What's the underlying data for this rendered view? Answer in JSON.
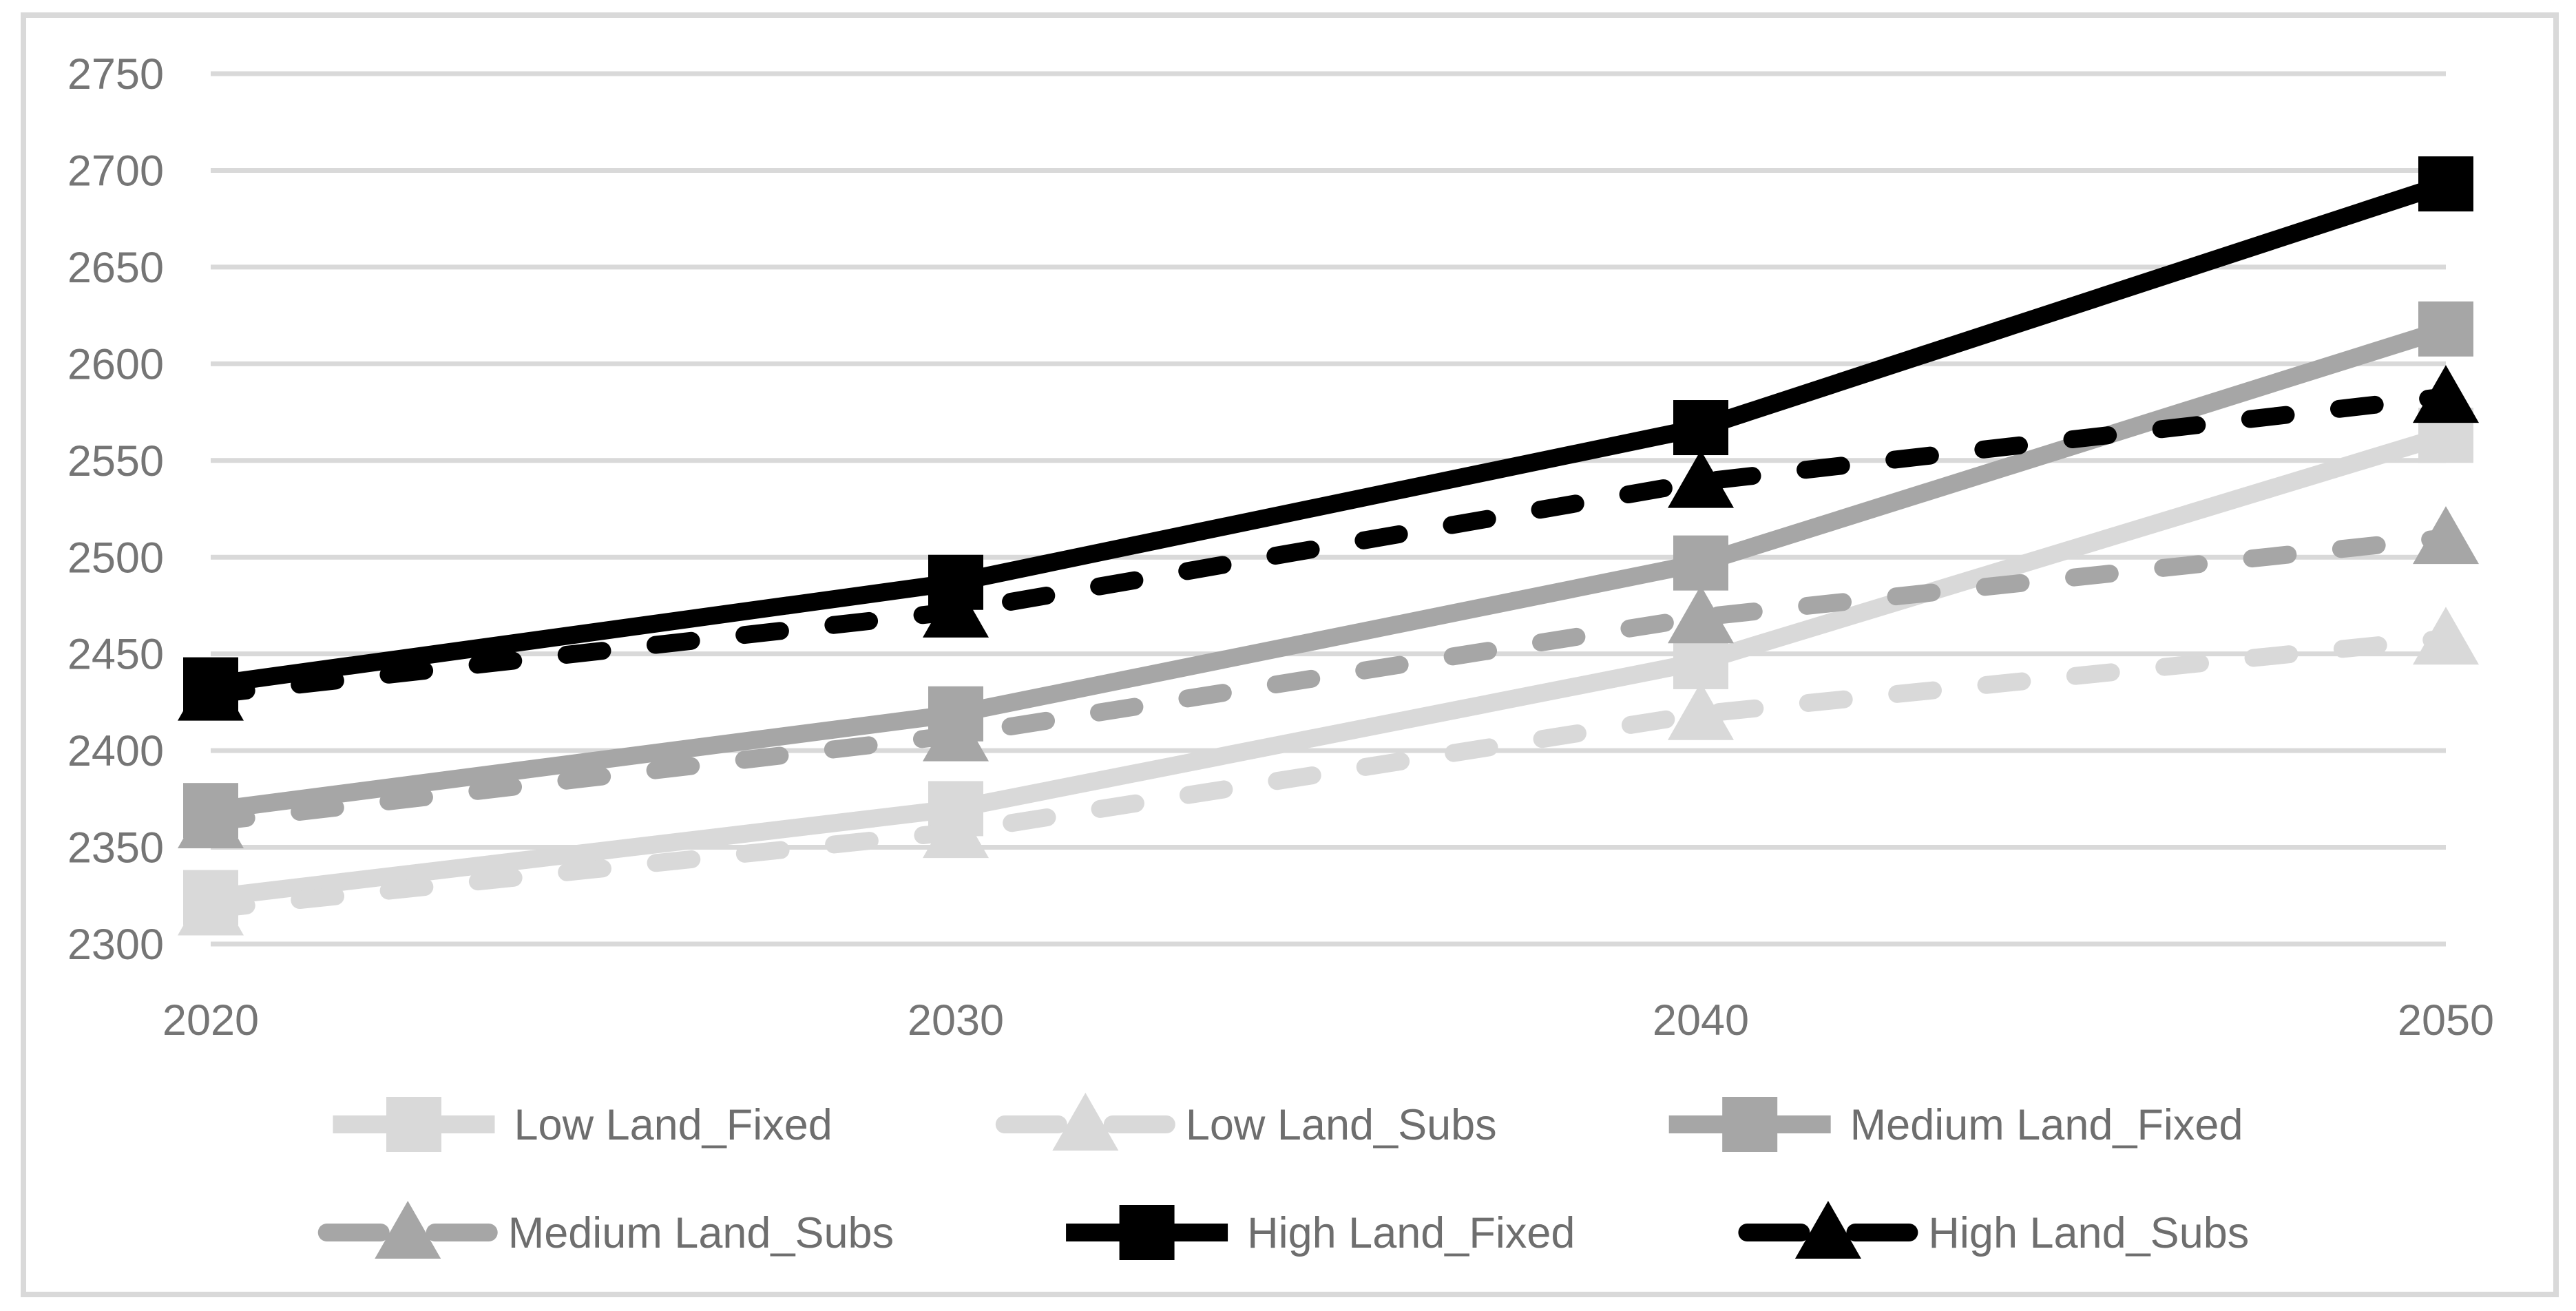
{
  "chart_data": {
    "type": "line",
    "categories": [
      "2020",
      "2030",
      "2040",
      "2050"
    ],
    "series": [
      {
        "name": "Low Land_Fixed",
        "values": [
          2324,
          2370,
          2446,
          2563
        ],
        "color": "#d9d9d9",
        "dash": false,
        "marker": "square"
      },
      {
        "name": "Low Land_Subs",
        "values": [
          2318,
          2358,
          2419,
          2458
        ],
        "color": "#d9d9d9",
        "dash": true,
        "marker": "triangle"
      },
      {
        "name": "Medium Land_Fixed",
        "values": [
          2369,
          2419,
          2497,
          2618
        ],
        "color": "#a6a6a6",
        "dash": false,
        "marker": "square"
      },
      {
        "name": "Medium Land_Subs",
        "values": [
          2363,
          2408,
          2469,
          2510
        ],
        "color": "#a6a6a6",
        "dash": true,
        "marker": "triangle"
      },
      {
        "name": "High Land_Fixed",
        "values": [
          2434,
          2487,
          2567,
          2693
        ],
        "color": "#000000",
        "dash": false,
        "marker": "square"
      },
      {
        "name": "High Land_Subs",
        "values": [
          2429,
          2472,
          2539,
          2583
        ],
        "color": "#000000",
        "dash": true,
        "marker": "triangle"
      }
    ],
    "title": "",
    "xlabel": "",
    "ylabel": "",
    "ylim": [
      2300,
      2750
    ],
    "ytick_step": 50,
    "grid": true,
    "legend_position": "bottom",
    "legend_rows": [
      [
        "Low Land_Fixed",
        "Low Land_Subs",
        "Medium Land_Fixed"
      ],
      [
        "Medium Land_Subs",
        "High Land_Fixed",
        "High Land_Subs"
      ]
    ]
  },
  "axis": {
    "y_ticks": [
      "2750",
      "2700",
      "2650",
      "2600",
      "2550",
      "2500",
      "2450",
      "2400",
      "2350",
      "2300"
    ],
    "x_ticks": [
      "2020",
      "2030",
      "2040",
      "2050"
    ]
  },
  "colors": {
    "gridline": "#d9d9d9",
    "chart_border": "#d9d9d9",
    "tick_text": "#757575",
    "legend_text": "#6e6e6e",
    "background": "#ffffff"
  }
}
